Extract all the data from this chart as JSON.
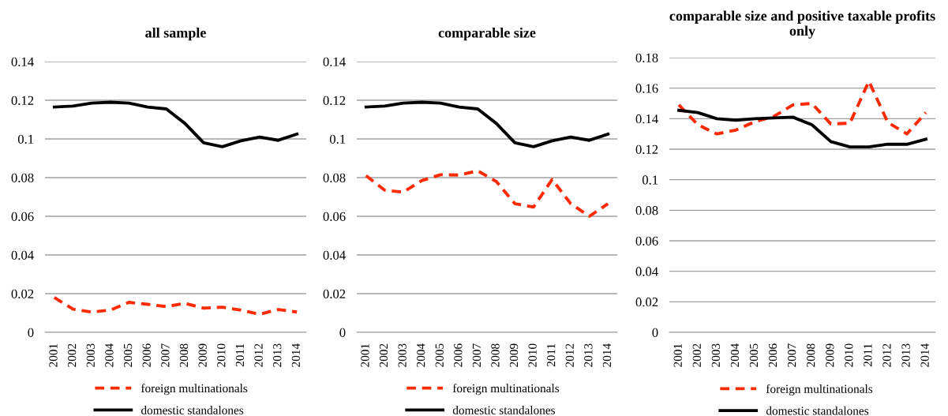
{
  "chart_data": [
    {
      "type": "line",
      "title": "all sample",
      "categories": [
        "2001",
        "2002",
        "2003",
        "2004",
        "2005",
        "2006",
        "2007",
        "2008",
        "2009",
        "2010",
        "2011",
        "2012",
        "2013",
        "2014"
      ],
      "series": [
        {
          "name": "foreign multinationals",
          "color": "#ff2a00",
          "line_style": "dashed",
          "values": [
            0.018,
            0.012,
            0.0105,
            0.0115,
            0.0155,
            0.0145,
            0.0133,
            0.015,
            0.0125,
            0.013,
            0.0115,
            0.0093,
            0.0118,
            0.0105
          ]
        },
        {
          "name": "domestic standalones",
          "color": "#000000",
          "line_style": "solid",
          "values": [
            0.1165,
            0.117,
            0.1185,
            0.119,
            0.1185,
            0.1165,
            0.1155,
            0.108,
            0.098,
            0.096,
            0.099,
            0.101,
            0.0993,
            0.1025
          ]
        }
      ],
      "ylim": [
        0,
        0.14
      ],
      "yticks": [
        0,
        0.02,
        0.04,
        0.06,
        0.08,
        0.1,
        0.12,
        0.14
      ],
      "grid": "y",
      "legend": "bottom",
      "marker": "none"
    },
    {
      "type": "line",
      "title": "comparable size",
      "categories": [
        "2001",
        "2002",
        "2003",
        "2004",
        "2005",
        "2006",
        "2007",
        "2008",
        "2009",
        "2010",
        "2011",
        "2012",
        "2013",
        "2014"
      ],
      "series": [
        {
          "name": "foreign multinationals",
          "color": "#ff2a00",
          "line_style": "dashed",
          "values": [
            0.081,
            0.0735,
            0.0725,
            0.0785,
            0.0815,
            0.0813,
            0.0835,
            0.078,
            0.0665,
            0.0648,
            0.079,
            0.0665,
            0.06,
            0.0665
          ]
        },
        {
          "name": "domestic standalones",
          "color": "#000000",
          "line_style": "solid",
          "values": [
            0.1165,
            0.117,
            0.1185,
            0.119,
            0.1185,
            0.1165,
            0.1155,
            0.108,
            0.098,
            0.096,
            0.099,
            0.101,
            0.0993,
            0.1025
          ]
        }
      ],
      "ylim": [
        0,
        0.14
      ],
      "yticks": [
        0,
        0.02,
        0.04,
        0.06,
        0.08,
        0.1,
        0.12,
        0.14
      ],
      "grid": "y",
      "legend": "bottom",
      "marker": "none"
    },
    {
      "type": "line",
      "title": "comparable size and positive taxable profits only",
      "categories": [
        "2001",
        "2002",
        "2003",
        "2004",
        "2005",
        "2006",
        "2007",
        "2008",
        "2009",
        "2010",
        "2011",
        "2012",
        "2013",
        "2014"
      ],
      "series": [
        {
          "name": "foreign multinationals",
          "color": "#ff2a00",
          "line_style": "dashed",
          "values": [
            0.149,
            0.136,
            0.13,
            0.1325,
            0.138,
            0.1415,
            0.149,
            0.15,
            0.1365,
            0.137,
            0.1645,
            0.1375,
            0.13,
            0.144
          ]
        },
        {
          "name": "domestic standalones",
          "color": "#000000",
          "line_style": "solid",
          "values": [
            0.1455,
            0.144,
            0.14,
            0.139,
            0.14,
            0.1405,
            0.141,
            0.136,
            0.125,
            0.1215,
            0.1215,
            0.1233,
            0.1232,
            0.1265
          ]
        }
      ],
      "ylim": [
        0,
        0.18
      ],
      "yticks": [
        0,
        0.02,
        0.04,
        0.06,
        0.08,
        0.1,
        0.12,
        0.14,
        0.16,
        0.18
      ],
      "grid": "y",
      "legend": "bottom",
      "marker": "none"
    }
  ]
}
